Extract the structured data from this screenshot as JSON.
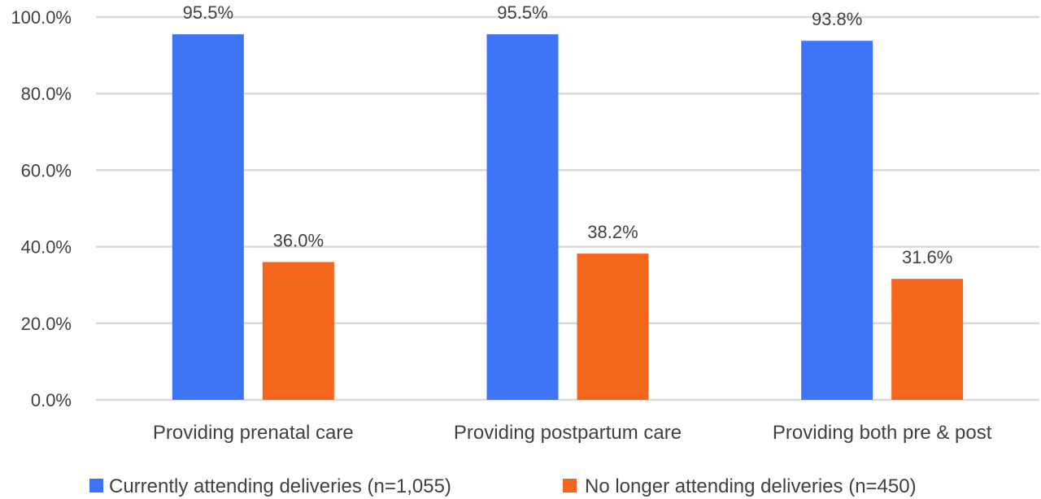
{
  "chart_data": {
    "type": "bar",
    "categories": [
      "Providing prenatal care",
      "Providing postpartum care",
      "Providing both pre & post"
    ],
    "series": [
      {
        "name": "Currently attending deliveries (n=1,055)",
        "values": [
          95.5,
          95.5,
          93.8
        ],
        "labels": [
          "95.5%",
          "95.5%",
          "93.8%"
        ],
        "color": "#3d74f5"
      },
      {
        "name": "No longer attending deliveries (n=450)",
        "values": [
          36.0,
          38.2,
          31.6
        ],
        "labels": [
          "36.0%",
          "38.2%",
          "31.6%"
        ],
        "color": "#f4661b"
      }
    ],
    "y_ticks": [
      "0.0%",
      "20.0%",
      "40.0%",
      "60.0%",
      "80.0%",
      "100.0%"
    ],
    "ylim": [
      0,
      100
    ],
    "grid": true,
    "legend_position": "bottom",
    "gridline_color": "#d9d9d9"
  }
}
